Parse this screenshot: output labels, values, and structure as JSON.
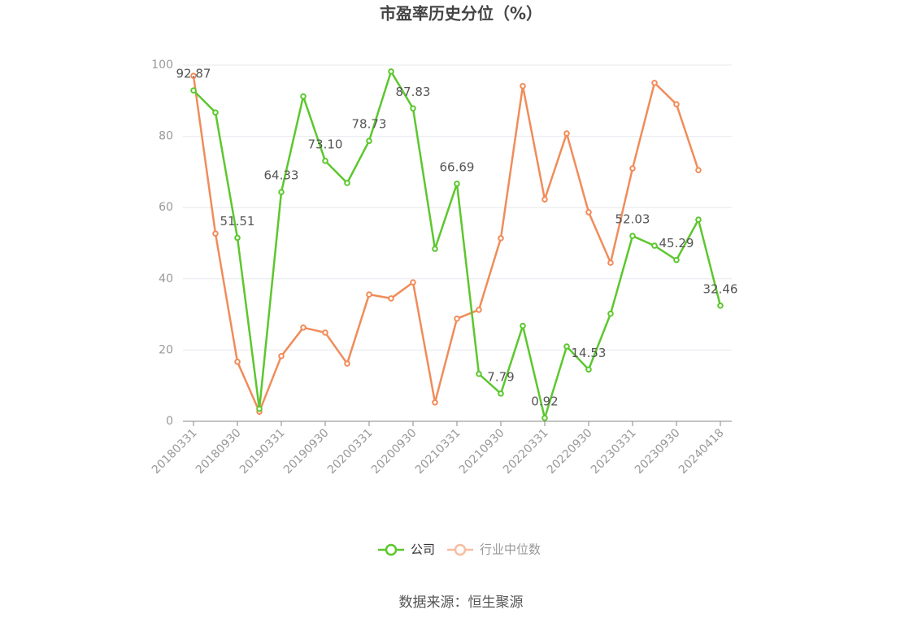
{
  "chart_data": {
    "type": "line",
    "title": "市盈率历史分位（%）",
    "categories": [
      "20180331",
      null,
      "20180930",
      null,
      "20190331",
      null,
      "20190930",
      null,
      "20200331",
      null,
      "20200930",
      null,
      "20210331",
      null,
      "20210930",
      null,
      "20220331",
      null,
      "20220930",
      null,
      "20230331",
      null,
      "20230930",
      null,
      "20240418"
    ],
    "series": [
      {
        "name": "公司",
        "color": "#5cc72e",
        "values": [
          92.87,
          86.7,
          51.51,
          3.5,
          64.33,
          91.2,
          73.1,
          66.9,
          78.73,
          98.2,
          87.83,
          48.4,
          66.69,
          13.3,
          7.79,
          26.8,
          0.92,
          21.0,
          14.53,
          30.2,
          52.03,
          49.3,
          45.29,
          56.6,
          32.46
        ],
        "value_labels": [
          "92.87",
          null,
          "51.51",
          null,
          "64.33",
          null,
          "73.10",
          null,
          "78.73",
          null,
          "87.83",
          null,
          "66.69",
          null,
          "7.79",
          null,
          "0.92",
          null,
          "14.53",
          null,
          "52.03",
          null,
          "45.29",
          null,
          "32.46"
        ]
      },
      {
        "name": "行业中位数",
        "color": "#f08c5a",
        "values": [
          97.0,
          52.7,
          16.7,
          2.7,
          18.3,
          26.3,
          24.9,
          16.2,
          35.6,
          34.5,
          39.0,
          5.3,
          28.8,
          31.3,
          51.4,
          94.1,
          62.3,
          80.8,
          58.7,
          44.5,
          71.0,
          95.0,
          89.0,
          70.5,
          null
        ]
      }
    ],
    "ylim": [
      0,
      100
    ],
    "yticks": [
      0,
      20,
      40,
      60,
      80,
      100
    ],
    "grid": true,
    "source": "数据来源：恒生聚源"
  }
}
